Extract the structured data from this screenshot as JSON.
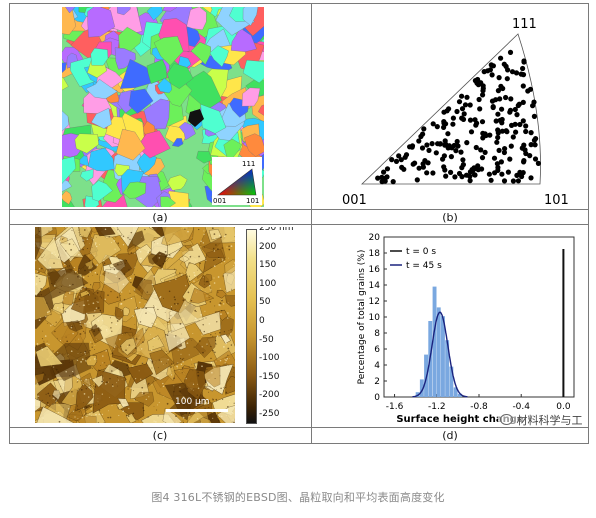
{
  "panels": {
    "a": {
      "label": "(a)",
      "legend_111": "111",
      "legend_001": "001",
      "legend_101": "101"
    },
    "b": {
      "label": "(b)",
      "pole_111": "111",
      "pole_001": "001",
      "pole_101": "101"
    },
    "c": {
      "label": "(c)",
      "colorbar_ticks": [
        "250 nm",
        "200",
        "150",
        "100",
        "50",
        "0",
        "-50",
        "-100",
        "-150",
        "-200",
        "-250"
      ],
      "scale_bar": "100 µm"
    },
    "d": {
      "label": "(d)"
    }
  },
  "chart_data": {
    "type": "bar",
    "xlabel": "Surface height change",
    "ylabel": "Percentage of total grains (%)",
    "xlim": [
      -1.7,
      0.1
    ],
    "ylim": [
      0,
      20
    ],
    "xticks": [
      "-1.6",
      "-1.2",
      "-0.8",
      "-0.4",
      "0.0"
    ],
    "yticks": [
      "0",
      "2",
      "4",
      "6",
      "8",
      "10",
      "12",
      "14",
      "16",
      "18",
      "20"
    ],
    "series": [
      {
        "name": "t = 0 s",
        "color": "#111111",
        "x": [
          0.0
        ],
        "values": [
          18.5
        ]
      },
      {
        "name": "t = 45 s",
        "color": "#7aa8e0",
        "x": [
          -1.38,
          -1.34,
          -1.3,
          -1.26,
          -1.22,
          -1.18,
          -1.14,
          -1.1,
          -1.06,
          -1.02,
          -0.98
        ],
        "values": [
          0.6,
          2.2,
          5.3,
          9.5,
          13.8,
          11.2,
          10.1,
          7.1,
          3.8,
          1.2,
          0.4
        ]
      }
    ],
    "fit_curve": {
      "color": "#1a237e",
      "mean": -1.17,
      "sigma": 0.075,
      "peak": 10.6
    },
    "legend_position": "top-left"
  },
  "caption": "图4 316L不锈钢的EBSD图、晶粒取向和平均表面高度变化",
  "watermark": "材料科学与工程"
}
